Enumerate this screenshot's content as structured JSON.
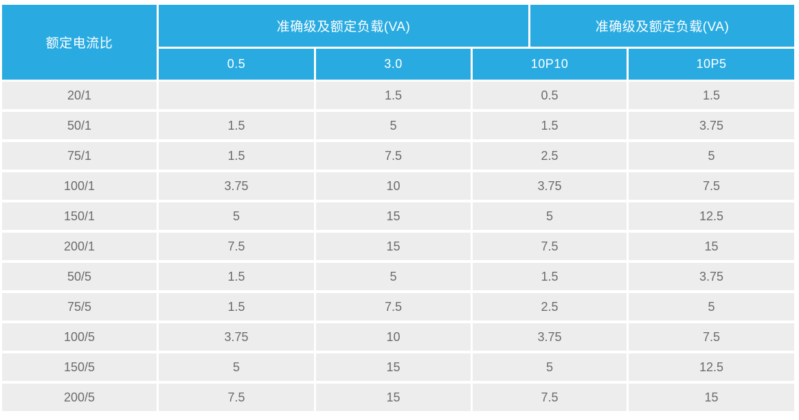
{
  "colors": {
    "header_bg": "#29ABE2",
    "header_text": "#FFFFFF",
    "row_bg": "#EDEDED",
    "row_text": "#6A6B6D",
    "page_bg": "#FFFFFF"
  },
  "header": {
    "ratio_label": "额定电流比",
    "group1_label": "准确级及额定负载(VA)",
    "group2_label": "准确级及额定负载(VA)",
    "columns": [
      "0.5",
      "3.0",
      "10P10",
      "10P5"
    ]
  },
  "chart_data": {
    "type": "table",
    "columns": [
      "额定电流比",
      "0.5",
      "3.0",
      "10P10",
      "10P5"
    ],
    "column_groups": [
      {
        "label": "准确级及额定负载(VA)",
        "spans": [
          "0.5",
          "3.0"
        ]
      },
      {
        "label": "准确级及额定负载(VA)",
        "spans": [
          "10P10",
          "10P5"
        ]
      }
    ],
    "rows": [
      [
        "20/1",
        "",
        "1.5",
        "0.5",
        "1.5"
      ],
      [
        "50/1",
        "1.5",
        "5",
        "1.5",
        "3.75"
      ],
      [
        "75/1",
        "1.5",
        "7.5",
        "2.5",
        "5"
      ],
      [
        "100/1",
        "3.75",
        "10",
        "3.75",
        "7.5"
      ],
      [
        "150/1",
        "5",
        "15",
        "5",
        "12.5"
      ],
      [
        "200/1",
        "7.5",
        "15",
        "7.5",
        "15"
      ],
      [
        "50/5",
        "1.5",
        "5",
        "1.5",
        "3.75"
      ],
      [
        "75/5",
        "1.5",
        "7.5",
        "2.5",
        "5"
      ],
      [
        "100/5",
        "3.75",
        "10",
        "3.75",
        "7.5"
      ],
      [
        "150/5",
        "5",
        "15",
        "5",
        "12.5"
      ],
      [
        "200/5",
        "7.5",
        "15",
        "7.5",
        "15"
      ]
    ]
  }
}
